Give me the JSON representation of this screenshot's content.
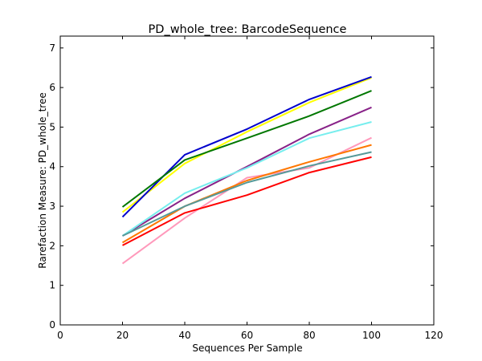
{
  "chart_data": {
    "type": "line",
    "title": "PD_whole_tree: BarcodeSequence",
    "xlabel": "Sequences Per Sample",
    "ylabel": "Rarefaction Measure: PD_whole_tree",
    "xlim": [
      0,
      120
    ],
    "ylim": [
      0,
      7.3
    ],
    "xticks": [
      0,
      20,
      40,
      60,
      80,
      100,
      120
    ],
    "yticks": [
      0,
      1,
      2,
      3,
      4,
      5,
      6,
      7
    ],
    "grid": false,
    "x": [
      20,
      40,
      60,
      80,
      100
    ],
    "series": [
      {
        "color": "#ffff00",
        "values": [
          2.85,
          4.08,
          4.88,
          5.62,
          6.25
        ]
      },
      {
        "color": "#0000cc",
        "values": [
          2.73,
          4.3,
          4.95,
          5.7,
          6.27
        ]
      },
      {
        "color": "#007700",
        "values": [
          2.98,
          4.17,
          4.72,
          5.28,
          5.92
        ]
      },
      {
        "color": "#882288",
        "values": [
          2.25,
          3.2,
          4.0,
          4.82,
          5.5
        ]
      },
      {
        "color": "#77eeee",
        "values": [
          2.25,
          3.33,
          3.97,
          4.72,
          5.13
        ]
      },
      {
        "color": "#ff99bb",
        "values": [
          1.55,
          2.7,
          3.72,
          3.97,
          4.73
        ]
      },
      {
        "color": "#ff7700",
        "values": [
          2.08,
          3.0,
          3.65,
          4.12,
          4.55
        ]
      },
      {
        "color": "#559999",
        "values": [
          2.25,
          3.0,
          3.6,
          4.02,
          4.37
        ]
      },
      {
        "color": "#ff0000",
        "values": [
          2.01,
          2.83,
          3.28,
          3.85,
          4.24
        ]
      }
    ]
  }
}
